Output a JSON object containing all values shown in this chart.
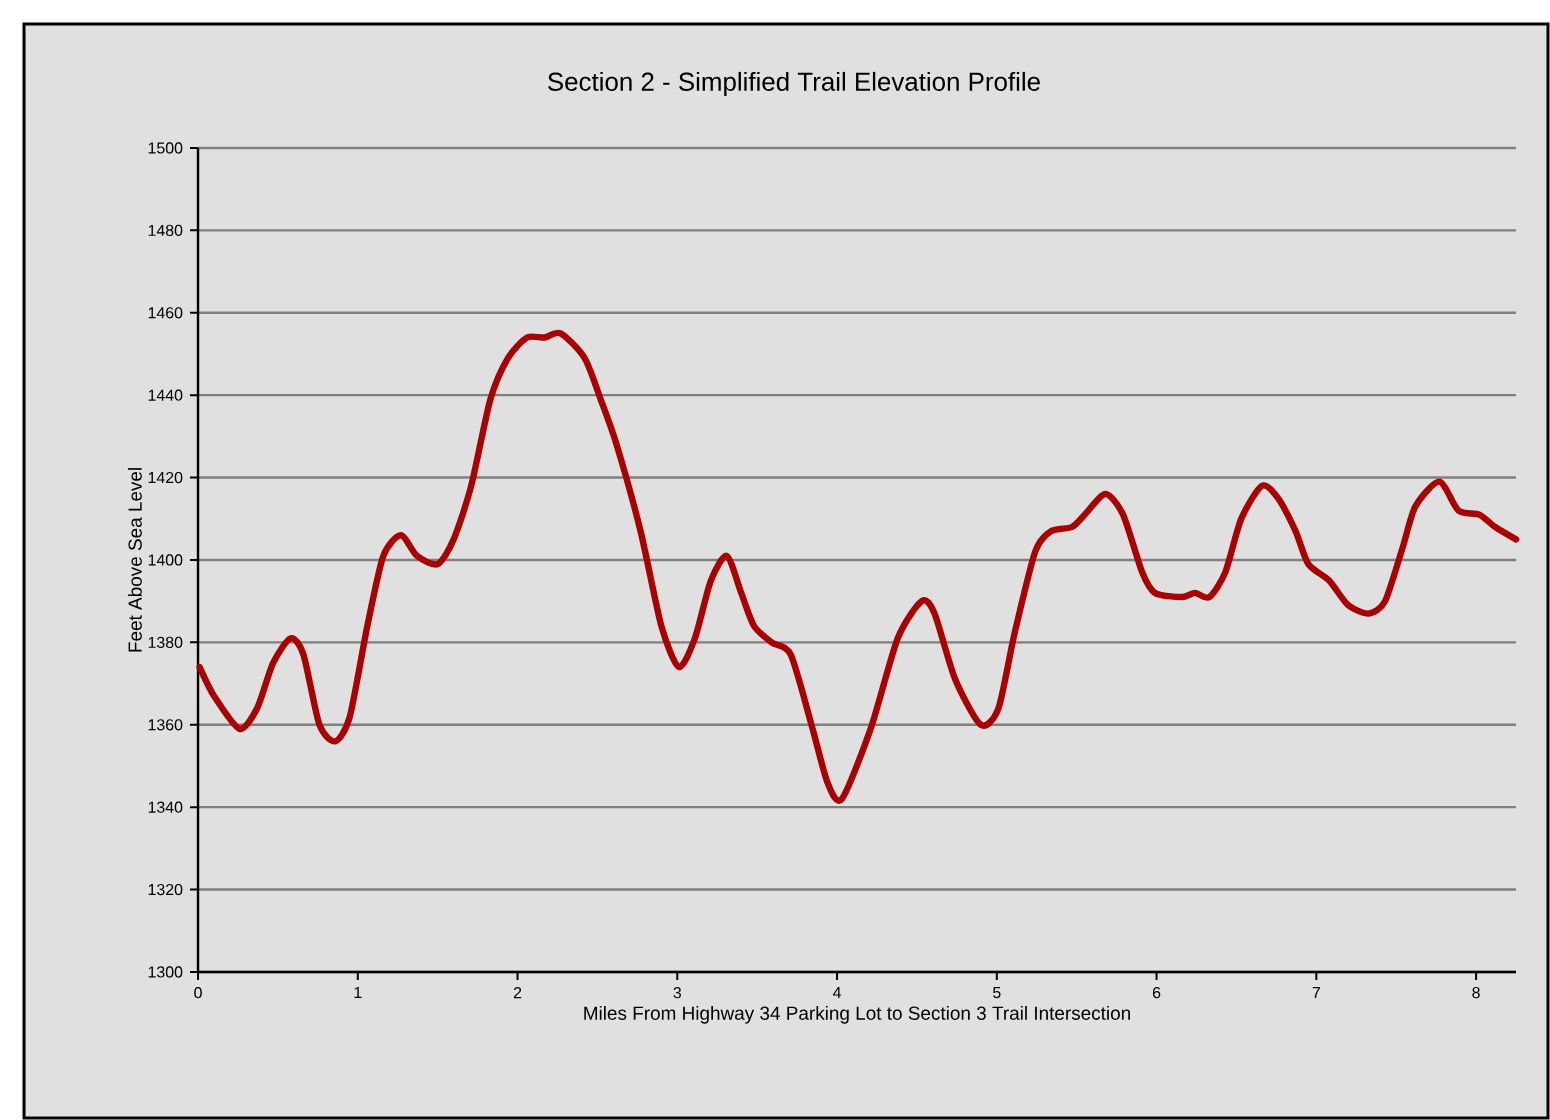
{
  "chart_data": {
    "type": "line",
    "title": "Section 2 - Simplified Trail Elevation Profile",
    "xlabel": "Miles From Highway 34 Parking Lot to Section 3 Trail Intersection",
    "ylabel": "Feet Above Sea Level",
    "x": [
      0.01,
      0.1,
      0.26,
      0.37,
      0.47,
      0.58,
      0.66,
      0.76,
      0.86,
      0.95,
      1.06,
      1.16,
      1.27,
      1.37,
      1.5,
      1.6,
      1.71,
      1.83,
      1.94,
      2.06,
      2.17,
      2.27,
      2.42,
      2.52,
      2.62,
      2.77,
      2.9,
      3.01,
      3.11,
      3.21,
      3.31,
      3.4,
      3.48,
      3.59,
      3.71,
      3.84,
      3.94,
      4.03,
      4.21,
      4.38,
      4.53,
      4.61,
      4.74,
      4.9,
      5.01,
      5.11,
      5.24,
      5.34,
      5.47,
      5.55,
      5.68,
      5.79,
      5.91,
      5.99,
      6.16,
      6.24,
      6.33,
      6.43,
      6.53,
      6.66,
      6.76,
      6.87,
      6.95,
      7.08,
      7.2,
      7.33,
      7.43,
      7.54,
      7.62,
      7.77,
      7.89,
      8.02,
      8.12,
      8.25
    ],
    "series": [
      {
        "color": "#aa0000",
        "values": [
          1374,
          1367,
          1359,
          1364,
          1375,
          1381,
          1377,
          1360,
          1356,
          1362,
          1384,
          1401,
          1406,
          1401,
          1399,
          1405,
          1418,
          1439,
          1449,
          1454,
          1454,
          1455,
          1449,
          1439,
          1428,
          1407,
          1384,
          1374,
          1381,
          1395,
          1401,
          1392,
          1384,
          1380,
          1377,
          1360,
          1346,
          1342,
          1359,
          1381,
          1390,
          1387,
          1371,
          1360,
          1364,
          1382,
          1402,
          1407,
          1408,
          1411,
          1416,
          1411,
          1397,
          1392,
          1391,
          1392,
          1391,
          1397,
          1410,
          1418,
          1415,
          1407,
          1399,
          1395,
          1389,
          1387,
          1390,
          1403,
          1413,
          1419,
          1412,
          1411,
          1408,
          1405
        ]
      }
    ],
    "xlim": [
      0,
      8.25
    ],
    "xticks": [
      0,
      1,
      2,
      3,
      4,
      5,
      6,
      7,
      8
    ],
    "ylim": [
      1300,
      1500
    ],
    "yticks": [
      1300,
      1320,
      1340,
      1360,
      1380,
      1400,
      1420,
      1440,
      1460,
      1480,
      1500
    ],
    "grid": "y",
    "marker": "none",
    "line_style": "solid"
  }
}
